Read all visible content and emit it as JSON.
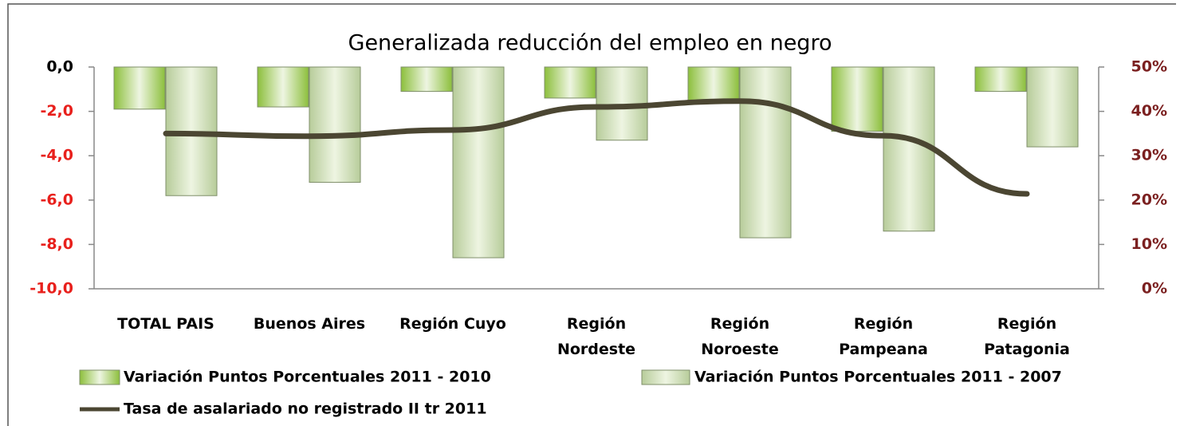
{
  "chart_data": {
    "type": "bar_line",
    "title": "Generalizada reducción del empleo en negro",
    "categories": [
      "TOTAL PAIS",
      "Buenos Aires",
      "Región Cuyo",
      "Región\nNordeste",
      "Región\nNoroeste",
      "Región\nPampeana",
      "Región\nPatagonia"
    ],
    "series": [
      {
        "name": "Variación Puntos Porcentuales 2011 - 2010",
        "color": "#8cbf3c",
        "values": [
          -1.9,
          -1.8,
          -1.1,
          -1.4,
          -1.5,
          -2.9,
          -1.1
        ]
      },
      {
        "name": "Variación Puntos Porcentuales 2011 - 2007",
        "color": "#b7cc9a",
        "values": [
          -5.8,
          -5.2,
          -8.6,
          -3.3,
          -7.7,
          -7.4,
          -3.6
        ]
      },
      {
        "name": "Tasa de asalariado no registrado II tr 2011",
        "color": "#4b4632",
        "axis": "y2",
        "type": "line",
        "values": [
          35,
          34.4,
          35.8,
          41,
          42.3,
          34.5,
          21.4
        ]
      }
    ],
    "ylim": [
      -10,
      0
    ],
    "yticks": [
      {
        "value": 0,
        "label": "0,0"
      },
      {
        "value": -2,
        "label": "-2,0"
      },
      {
        "value": -4,
        "label": "-4,0"
      },
      {
        "value": -6,
        "label": "-6,0"
      },
      {
        "value": -8,
        "label": "-8,0"
      },
      {
        "value": -10,
        "label": "-10,0"
      }
    ],
    "ytick_colors": [
      "#000000",
      "#e8201c",
      "#e8201c",
      "#e8201c",
      "#e8201c",
      "#e8201c"
    ],
    "y2lim": [
      0,
      50
    ],
    "y2ticks": [
      {
        "value": 50,
        "label": "50%"
      },
      {
        "value": 40,
        "label": "40%"
      },
      {
        "value": 30,
        "label": "30%"
      },
      {
        "value": 20,
        "label": "20%"
      },
      {
        "value": 10,
        "label": "10%"
      },
      {
        "value": 0,
        "label": "0%"
      }
    ],
    "y2tick_color": "#7b2020"
  }
}
